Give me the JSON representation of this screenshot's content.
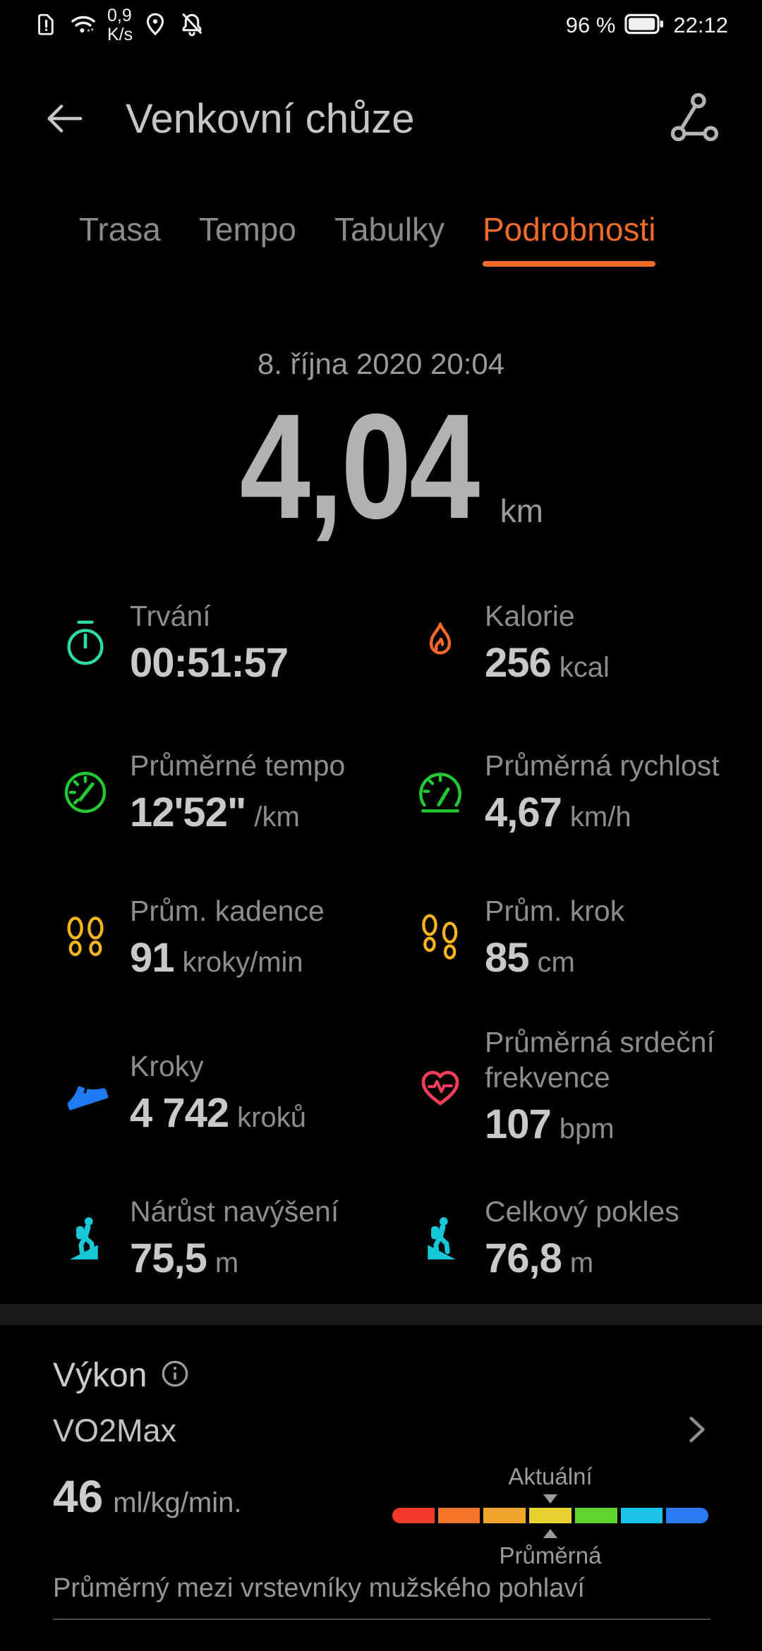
{
  "status_bar": {
    "net_speed_top": "0,9",
    "net_speed_bottom": "K/s",
    "battery_percent": "96 %",
    "time": "22:12"
  },
  "header": {
    "title": "Venkovní chůze"
  },
  "tabs": {
    "active_index": 3,
    "items": [
      {
        "label": "Trasa"
      },
      {
        "label": "Tempo"
      },
      {
        "label": "Tabulky"
      },
      {
        "label": "Podrobnosti"
      }
    ]
  },
  "summary": {
    "date": "8. října 2020 20:04",
    "distance": "4,04",
    "unit": "km"
  },
  "stats": [
    {
      "icon": "stopwatch-icon",
      "label": "Trvání",
      "value": "00:51:57",
      "unit": "",
      "color": "#2fd9a4"
    },
    {
      "icon": "flame-icon",
      "label": "Kalorie",
      "value": "256",
      "unit": "kcal",
      "color": "#f4692a"
    },
    {
      "icon": "pace-gauge-icon",
      "label": "Průměrné tempo",
      "value": "12'52\"",
      "unit": "/km",
      "color": "#23c932"
    },
    {
      "icon": "speed-gauge-icon",
      "label": "Průměrná rychlost",
      "value": "4,67",
      "unit": "km/h",
      "color": "#23c932"
    },
    {
      "icon": "footprints-icon",
      "label": "Prům. kadence",
      "value": "91",
      "unit": "kroky/min",
      "color": "#f6b51d"
    },
    {
      "icon": "footprints-icon",
      "label": "Prům. krok",
      "value": "85",
      "unit": "cm",
      "color": "#f6b51d"
    },
    {
      "icon": "shoe-icon",
      "label": "Kroky",
      "value": "4 742",
      "unit": "kroků",
      "color": "#1e7bf4"
    },
    {
      "icon": "heart-ecg-icon",
      "label": "Průměrná srdeční frekvence",
      "value": "107",
      "unit": "bpm",
      "color": "#f43e5c"
    },
    {
      "icon": "hiker-ascent-icon",
      "label": "Nárůst navýšení",
      "value": "75,5",
      "unit": "m",
      "color": "#17c8d9"
    },
    {
      "icon": "hiker-descent-icon",
      "label": "Celkový pokles",
      "value": "76,8",
      "unit": "m",
      "color": "#17c8d9"
    }
  ],
  "performance": {
    "title": "Výkon",
    "vo2max_label": "VO2Max",
    "value": "46",
    "value_unit": "ml/kg/min.",
    "current_label": "Aktuální",
    "average_label": "Průměrná",
    "description": "Průměrný mezi vrstevníky mužského pohlaví",
    "scale_colors": [
      "#f43b2b",
      "#f4742a",
      "#efa42b",
      "#e5d02f",
      "#5fd32f",
      "#1ec3ea",
      "#2b7bf4"
    ]
  },
  "colors": {
    "accent": "#ed6c2a"
  }
}
